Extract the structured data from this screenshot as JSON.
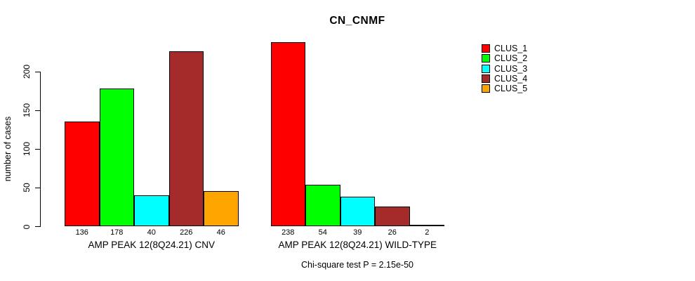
{
  "chart_data": {
    "type": "bar",
    "title": "CN_CNMF",
    "ylabel": "number of cases",
    "xlabel": "",
    "ylim": [
      0,
      240
    ],
    "yticks": [
      0,
      50,
      100,
      150,
      200
    ],
    "grid": false,
    "legend_position": "top-right",
    "bar_value_labels_shown": true,
    "categories": [
      "AMP PEAK 12(8Q24.21) CNV",
      "AMP PEAK 12(8Q24.21) WILD-TYPE"
    ],
    "series": [
      {
        "name": "CLUS_1",
        "color": "#FF0000",
        "values": [
          136,
          238
        ]
      },
      {
        "name": "CLUS_2",
        "color": "#00FF00",
        "values": [
          178,
          54
        ]
      },
      {
        "name": "CLUS_3",
        "color": "#00FFFF",
        "values": [
          40,
          39
        ]
      },
      {
        "name": "CLUS_4",
        "color": "#A52A2A",
        "values": [
          226,
          26
        ]
      },
      {
        "name": "CLUS_5",
        "color": "#FFA500",
        "values": [
          46,
          2
        ]
      }
    ],
    "footnote": "Chi-square test P = 2.15e-50",
    "axis_color": "#000000",
    "background_color": "#FFFFFF"
  }
}
